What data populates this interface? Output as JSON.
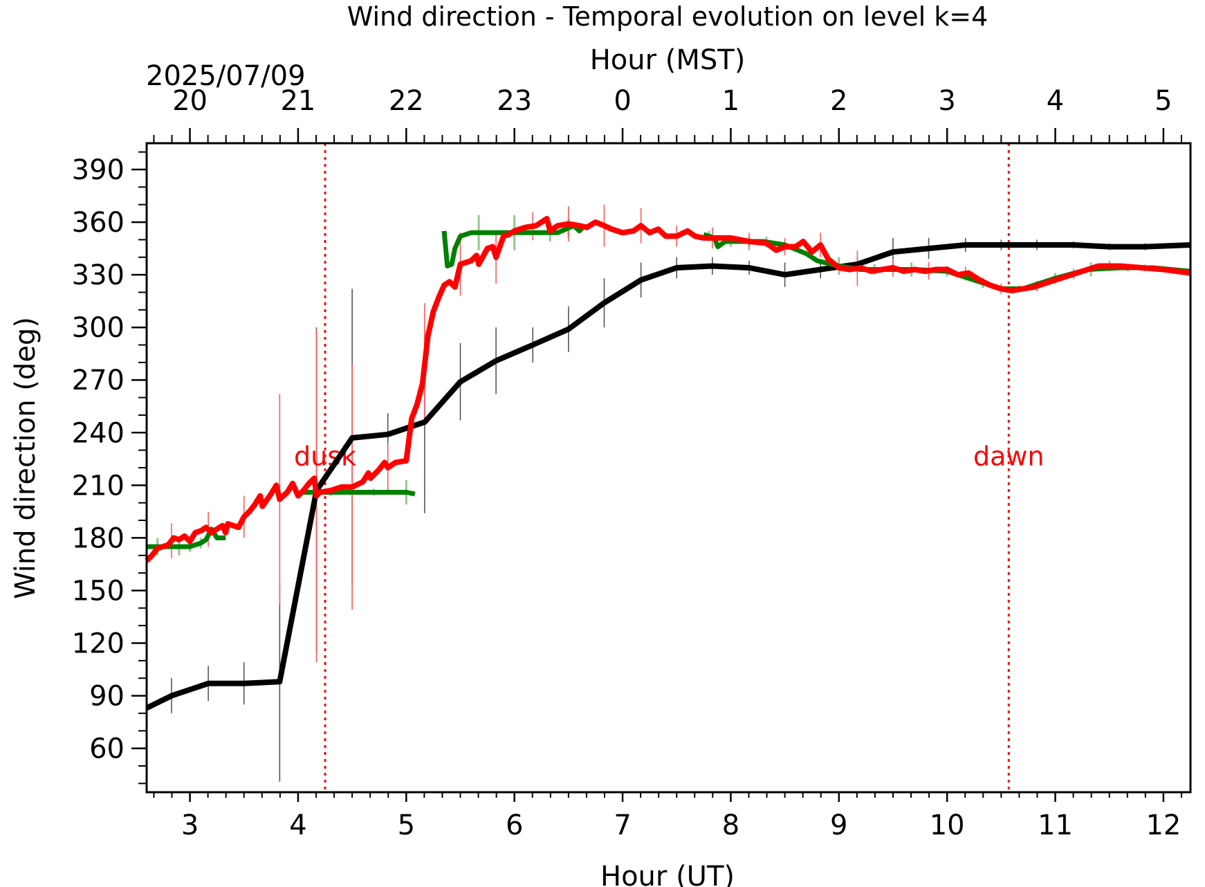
{
  "chart_data": {
    "type": "line",
    "title": "Wind direction - Temporal evolution on level k=4",
    "xlabel": "Hour (UT)",
    "x2label": "Hour (MST)",
    "date_label": "2025/07/09",
    "ylabel": "Wind direction (deg)",
    "xlim": [
      2.6,
      12.25
    ],
    "ylim": [
      35,
      405
    ],
    "x_ticks": [
      3,
      4,
      5,
      6,
      7,
      8,
      9,
      10,
      11,
      12
    ],
    "x2_ticks": [
      {
        "label": "20",
        "ut": 3
      },
      {
        "label": "21",
        "ut": 4
      },
      {
        "label": "22",
        "ut": 5
      },
      {
        "label": "23",
        "ut": 6
      },
      {
        "label": "0",
        "ut": 7
      },
      {
        "label": "1",
        "ut": 8
      },
      {
        "label": "2",
        "ut": 9
      },
      {
        "label": "3",
        "ut": 10
      },
      {
        "label": "4",
        "ut": 11
      },
      {
        "label": "5",
        "ut": 12
      }
    ],
    "y_ticks": [
      60,
      90,
      120,
      150,
      180,
      210,
      240,
      270,
      300,
      330,
      360,
      390
    ],
    "grid": false,
    "legend": "none",
    "annotations": [
      {
        "text": "dusk",
        "x": 4.25,
        "label_y": 227
      },
      {
        "text": "dawn",
        "x": 10.57,
        "label_y": 227
      }
    ],
    "series": [
      {
        "color": "#000000",
        "points": [
          [
            2.6,
            83
          ],
          [
            2.83,
            90
          ],
          [
            3.17,
            97
          ],
          [
            3.5,
            97
          ],
          [
            3.83,
            98
          ],
          [
            4.17,
            207
          ],
          [
            4.5,
            237
          ],
          [
            4.83,
            239
          ],
          [
            5.17,
            246
          ],
          [
            5.5,
            269
          ],
          [
            5.83,
            281
          ],
          [
            6.17,
            290
          ],
          [
            6.5,
            299
          ],
          [
            6.83,
            314
          ],
          [
            7.17,
            327
          ],
          [
            7.5,
            334
          ],
          [
            7.83,
            335
          ],
          [
            8.17,
            334
          ],
          [
            8.5,
            330
          ],
          [
            8.83,
            333
          ],
          [
            9.17,
            336
          ],
          [
            9.5,
            343
          ],
          [
            9.83,
            345
          ],
          [
            10.17,
            347
          ],
          [
            10.5,
            347
          ],
          [
            10.83,
            347
          ],
          [
            11.17,
            347
          ],
          [
            11.5,
            346
          ],
          [
            11.83,
            346
          ],
          [
            12.25,
            347
          ]
        ],
        "error_bars": [
          [
            2.83,
            10
          ],
          [
            3.17,
            10
          ],
          [
            3.5,
            12
          ],
          [
            3.83,
            57
          ],
          [
            4.17,
            93
          ],
          [
            4.5,
            85
          ],
          [
            4.83,
            12
          ],
          [
            5.17,
            52
          ],
          [
            5.5,
            22
          ],
          [
            5.83,
            19
          ],
          [
            6.17,
            10
          ],
          [
            6.5,
            13
          ],
          [
            6.83,
            14
          ],
          [
            7.17,
            10
          ],
          [
            7.5,
            6
          ],
          [
            7.83,
            5
          ],
          [
            8.17,
            4
          ],
          [
            8.5,
            7
          ],
          [
            8.83,
            5
          ],
          [
            9.17,
            4
          ],
          [
            9.5,
            8
          ],
          [
            9.83,
            6
          ],
          [
            10.17,
            4
          ],
          [
            10.5,
            3
          ],
          [
            10.83,
            3
          ],
          [
            11.17,
            2
          ],
          [
            11.5,
            2
          ],
          [
            11.83,
            2
          ]
        ]
      },
      {
        "color": "#008000",
        "segments": [
          [
            [
              2.6,
              175
            ],
            [
              3.0,
              175
            ],
            [
              3.1,
              177
            ],
            [
              3.15,
              179
            ],
            [
              3.2,
              185
            ],
            [
              3.25,
              180
            ],
            [
              3.33,
              180
            ]
          ],
          [
            [
              4.05,
              206
            ],
            [
              4.3,
              206
            ],
            [
              4.6,
              206
            ],
            [
              5.0,
              206
            ],
            [
              5.08,
              205
            ]
          ],
          [
            [
              5.35,
              355
            ],
            [
              5.38,
              335
            ],
            [
              5.42,
              336
            ],
            [
              5.45,
              345
            ],
            [
              5.5,
              352
            ],
            [
              5.6,
              354
            ],
            [
              6.0,
              354
            ],
            [
              6.4,
              354
            ],
            [
              6.55,
              358
            ],
            [
              6.6,
              355
            ],
            [
              6.65,
              358
            ]
          ],
          [
            [
              7.75,
              353
            ],
            [
              7.85,
              351
            ],
            [
              7.88,
              346
            ],
            [
              7.95,
              349
            ],
            [
              8.3,
              349
            ],
            [
              8.5,
              347
            ],
            [
              8.7,
              342
            ],
            [
              8.8,
              338
            ],
            [
              9.0,
              335
            ],
            [
              9.2,
              333
            ],
            [
              9.5,
              333
            ],
            [
              9.7,
              333
            ],
            [
              10.0,
              332
            ],
            [
              10.3,
              326
            ],
            [
              10.5,
              322
            ],
            [
              10.7,
              322
            ],
            [
              11.0,
              328
            ],
            [
              11.3,
              333
            ],
            [
              11.6,
              334
            ],
            [
              11.9,
              334
            ],
            [
              12.25,
              332
            ]
          ]
        ],
        "error_bars": [
          [
            2.7,
            5
          ],
          [
            2.9,
            5
          ],
          [
            3.0,
            3
          ],
          [
            3.1,
            3
          ],
          [
            4.3,
            2
          ],
          [
            4.7,
            2
          ],
          [
            5.0,
            7
          ],
          [
            5.67,
            10
          ],
          [
            6.0,
            10
          ],
          [
            6.33,
            5
          ],
          [
            6.5,
            5
          ],
          [
            7.8,
            3
          ],
          [
            8.0,
            3
          ],
          [
            8.17,
            3
          ],
          [
            8.33,
            3
          ],
          [
            9.0,
            5
          ],
          [
            9.33,
            3
          ],
          [
            9.67,
            4
          ],
          [
            10.0,
            3
          ],
          [
            10.33,
            3
          ],
          [
            10.67,
            2
          ],
          [
            11.0,
            3
          ],
          [
            11.33,
            4
          ],
          [
            11.67,
            2
          ]
        ]
      },
      {
        "color": "#ff0000",
        "points": [
          [
            2.6,
            167
          ],
          [
            2.65,
            170
          ],
          [
            2.7,
            174
          ],
          [
            2.75,
            175
          ],
          [
            2.8,
            176
          ],
          [
            2.85,
            180
          ],
          [
            2.9,
            179
          ],
          [
            2.95,
            181
          ],
          [
            3.0,
            178
          ],
          [
            3.05,
            183
          ],
          [
            3.1,
            184
          ],
          [
            3.15,
            186
          ],
          [
            3.2,
            183
          ],
          [
            3.25,
            185
          ],
          [
            3.3,
            187
          ],
          [
            3.33,
            183
          ],
          [
            3.35,
            188
          ],
          [
            3.45,
            186
          ],
          [
            3.5,
            192
          ],
          [
            3.55,
            195
          ],
          [
            3.6,
            199
          ],
          [
            3.65,
            204
          ],
          [
            3.67,
            198
          ],
          [
            3.75,
            205
          ],
          [
            3.8,
            210
          ],
          [
            3.83,
            202
          ],
          [
            3.9,
            206
          ],
          [
            3.95,
            211
          ],
          [
            4.0,
            204
          ],
          [
            4.05,
            207
          ],
          [
            4.1,
            211
          ],
          [
            4.15,
            214
          ],
          [
            4.17,
            204
          ],
          [
            4.2,
            206
          ],
          [
            4.3,
            207
          ],
          [
            4.4,
            209
          ],
          [
            4.5,
            209
          ],
          [
            4.6,
            212
          ],
          [
            4.65,
            217
          ],
          [
            4.67,
            214
          ],
          [
            4.75,
            219
          ],
          [
            4.8,
            223
          ],
          [
            4.83,
            220
          ],
          [
            4.9,
            223
          ],
          [
            5.0,
            224
          ],
          [
            5.05,
            248
          ],
          [
            5.1,
            256
          ],
          [
            5.15,
            268
          ],
          [
            5.2,
            295
          ],
          [
            5.25,
            309
          ],
          [
            5.3,
            317
          ],
          [
            5.35,
            324
          ],
          [
            5.4,
            326
          ],
          [
            5.45,
            323
          ],
          [
            5.5,
            336
          ],
          [
            5.55,
            337
          ],
          [
            5.6,
            338
          ],
          [
            5.65,
            341
          ],
          [
            5.67,
            336
          ],
          [
            5.75,
            345
          ],
          [
            5.8,
            346
          ],
          [
            5.83,
            340
          ],
          [
            5.9,
            352
          ],
          [
            5.95,
            353
          ],
          [
            6.0,
            355
          ],
          [
            6.1,
            357
          ],
          [
            6.2,
            358
          ],
          [
            6.3,
            362
          ],
          [
            6.33,
            355
          ],
          [
            6.4,
            358
          ],
          [
            6.5,
            359
          ],
          [
            6.6,
            358
          ],
          [
            6.67,
            357
          ],
          [
            6.75,
            360
          ],
          [
            6.83,
            358
          ],
          [
            6.9,
            356
          ],
          [
            7.0,
            354
          ],
          [
            7.1,
            355
          ],
          [
            7.17,
            358
          ],
          [
            7.25,
            354
          ],
          [
            7.33,
            356
          ],
          [
            7.4,
            352
          ],
          [
            7.5,
            352
          ],
          [
            7.6,
            355
          ],
          [
            7.67,
            352
          ],
          [
            7.75,
            351
          ],
          [
            7.83,
            351
          ],
          [
            8.0,
            351
          ],
          [
            8.17,
            349
          ],
          [
            8.33,
            348
          ],
          [
            8.42,
            344
          ],
          [
            8.5,
            346
          ],
          [
            8.6,
            346
          ],
          [
            8.67,
            349
          ],
          [
            8.75,
            343
          ],
          [
            8.83,
            347
          ],
          [
            8.9,
            339
          ],
          [
            9.0,
            334
          ],
          [
            9.1,
            333
          ],
          [
            9.2,
            334
          ],
          [
            9.3,
            332
          ],
          [
            9.4,
            333
          ],
          [
            9.5,
            334
          ],
          [
            9.6,
            332
          ],
          [
            9.7,
            333
          ],
          [
            9.8,
            332
          ],
          [
            9.9,
            333
          ],
          [
            10.0,
            333
          ],
          [
            10.1,
            330
          ],
          [
            10.2,
            331
          ],
          [
            10.3,
            327
          ],
          [
            10.4,
            324
          ],
          [
            10.5,
            322
          ],
          [
            10.6,
            321
          ],
          [
            10.7,
            322
          ],
          [
            10.8,
            323
          ],
          [
            11.0,
            327
          ],
          [
            11.2,
            331
          ],
          [
            11.4,
            335
          ],
          [
            11.6,
            335
          ],
          [
            11.8,
            334
          ],
          [
            12.0,
            333
          ],
          [
            12.25,
            331
          ]
        ],
        "error_bars": [
          [
            2.83,
            10
          ],
          [
            3.17,
            10
          ],
          [
            3.5,
            12
          ],
          [
            3.83,
            60
          ],
          [
            4.17,
            95
          ],
          [
            4.5,
            70
          ],
          [
            4.83,
            14
          ],
          [
            5.17,
            35
          ],
          [
            5.5,
            18
          ],
          [
            5.83,
            15
          ],
          [
            6.17,
            8
          ],
          [
            6.5,
            10
          ],
          [
            6.83,
            12
          ],
          [
            7.17,
            10
          ],
          [
            7.5,
            6
          ],
          [
            7.83,
            6
          ],
          [
            8.17,
            5
          ],
          [
            8.5,
            5
          ],
          [
            8.83,
            7
          ],
          [
            9.17,
            10
          ],
          [
            9.5,
            5
          ],
          [
            9.83,
            5
          ],
          [
            10.17,
            4
          ],
          [
            10.5,
            3
          ],
          [
            10.83,
            3
          ],
          [
            11.17,
            3
          ],
          [
            11.5,
            3
          ],
          [
            11.83,
            2
          ]
        ]
      }
    ]
  }
}
